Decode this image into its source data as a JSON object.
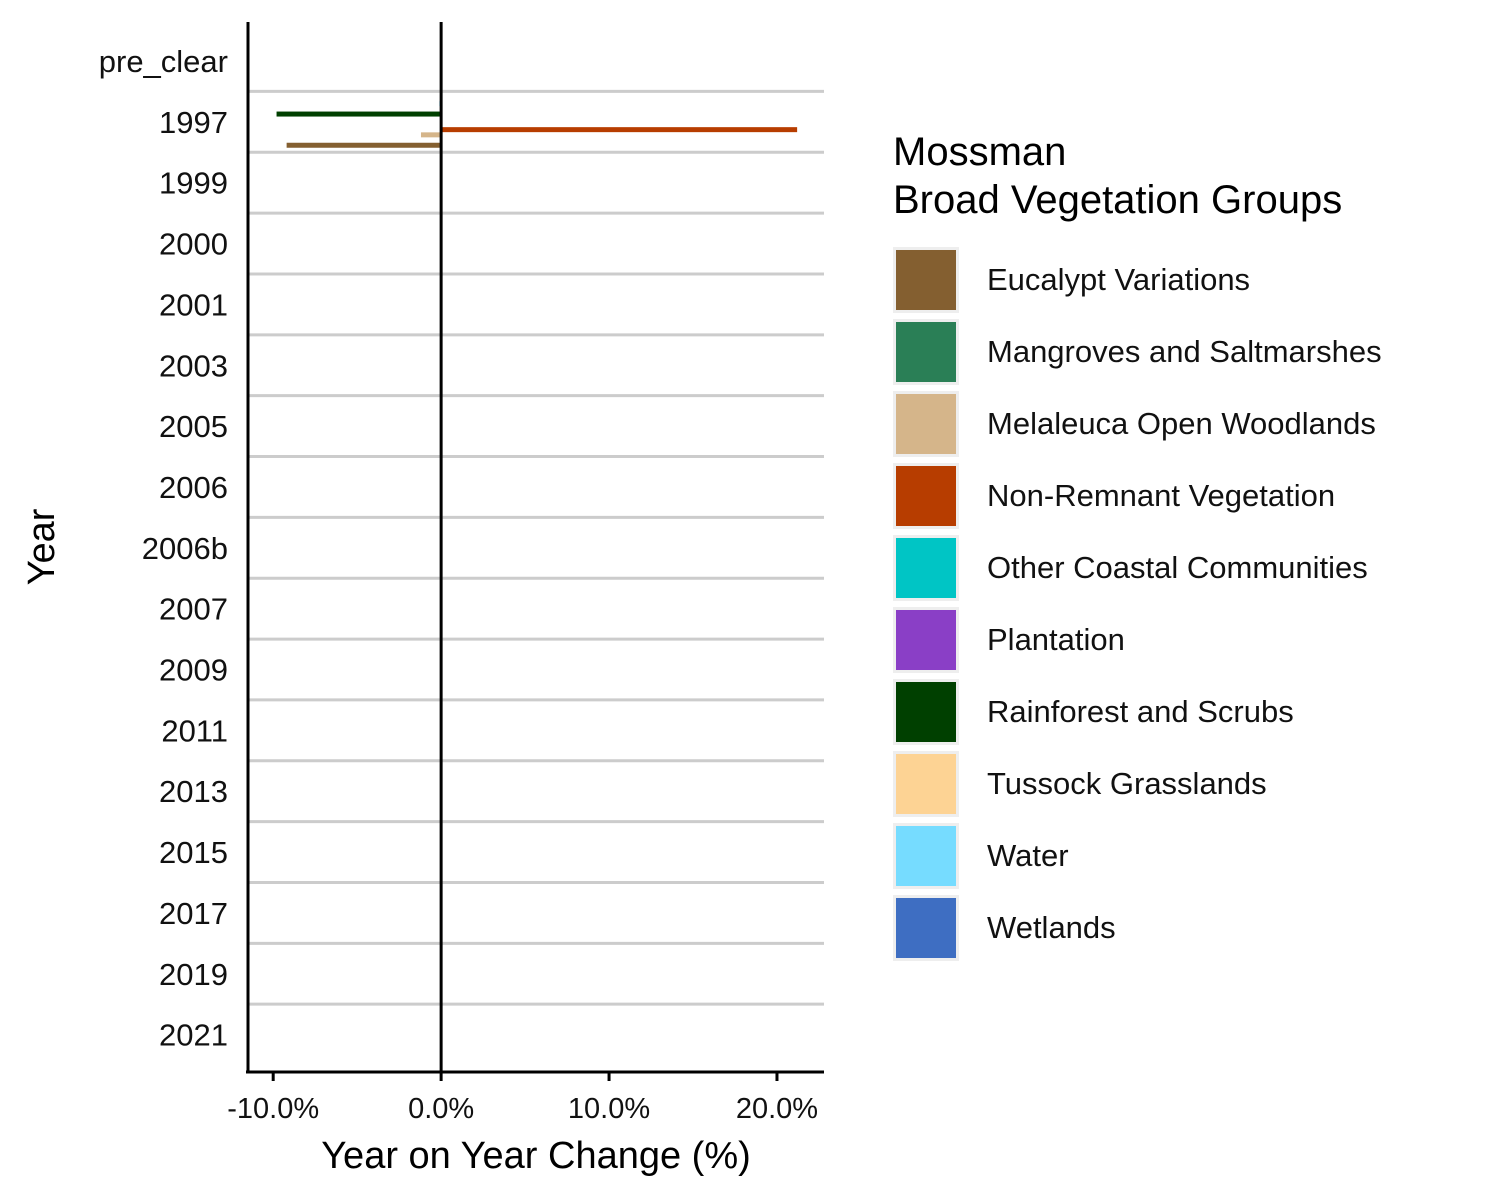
{
  "chart_data": {
    "type": "bar",
    "orientation": "horizontal",
    "title": "",
    "xlabel": "Year on Year Change (%)",
    "ylabel": "Year",
    "xlim": [
      -11.5,
      22.8
    ],
    "x_ticks": [
      -10,
      0,
      10,
      20
    ],
    "x_tick_labels": [
      "-10.0%",
      "0.0%",
      "10.0%",
      "20.0%"
    ],
    "categories": [
      "pre_clear",
      "1997",
      "1999",
      "2000",
      "2001",
      "2003",
      "2005",
      "2006",
      "2006b",
      "2007",
      "2009",
      "2011",
      "2013",
      "2015",
      "2017",
      "2019",
      "2021"
    ],
    "legend_title": [
      "Mossman",
      "Broad Vegetation Groups"
    ],
    "legend_position": "right",
    "series": [
      {
        "name": "Eucalypt Variations",
        "color": "#845F30",
        "values": [
          null,
          -9.2,
          null,
          null,
          null,
          null,
          null,
          null,
          null,
          null,
          null,
          null,
          null,
          null,
          null,
          null,
          null
        ]
      },
      {
        "name": "Mangroves and Saltmarshes",
        "color": "#2A7F56",
        "values": [
          null,
          0.0,
          null,
          null,
          null,
          null,
          null,
          null,
          null,
          null,
          null,
          null,
          null,
          null,
          null,
          null,
          null
        ]
      },
      {
        "name": "Melaleuca Open Woodlands",
        "color": "#D5B58A",
        "values": [
          null,
          -1.2,
          null,
          null,
          null,
          null,
          null,
          null,
          null,
          null,
          null,
          null,
          null,
          null,
          null,
          null,
          null
        ]
      },
      {
        "name": "Non-Remnant Vegetation",
        "color": "#B73D00",
        "values": [
          null,
          21.2,
          null,
          null,
          null,
          null,
          null,
          null,
          null,
          null,
          null,
          null,
          null,
          null,
          null,
          null,
          null
        ]
      },
      {
        "name": "Other Coastal Communities",
        "color": "#00C5C5",
        "values": [
          null,
          0.0,
          null,
          null,
          null,
          null,
          null,
          null,
          null,
          null,
          null,
          null,
          null,
          null,
          null,
          null,
          null
        ]
      },
      {
        "name": "Plantation",
        "color": "#8A3FC6",
        "values": [
          null,
          0.0,
          null,
          null,
          null,
          null,
          null,
          null,
          null,
          null,
          null,
          null,
          null,
          null,
          null,
          null,
          null
        ]
      },
      {
        "name": "Rainforest and Scrubs",
        "color": "#004000",
        "values": [
          null,
          -9.8,
          null,
          null,
          null,
          null,
          null,
          null,
          null,
          null,
          null,
          null,
          null,
          null,
          null,
          null,
          null
        ]
      },
      {
        "name": "Tussock Grasslands",
        "color": "#FDD394",
        "values": [
          null,
          0.0,
          null,
          null,
          null,
          null,
          null,
          null,
          null,
          null,
          null,
          null,
          null,
          null,
          null,
          null,
          null
        ]
      },
      {
        "name": "Water",
        "color": "#76DCFF",
        "values": [
          null,
          -0.1,
          null,
          null,
          null,
          null,
          null,
          null,
          null,
          null,
          null,
          null,
          null,
          null,
          null,
          null,
          null
        ]
      },
      {
        "name": "Wetlands",
        "color": "#3E6EC2",
        "values": [
          null,
          0.0,
          null,
          null,
          null,
          null,
          null,
          null,
          null,
          null,
          null,
          null,
          null,
          null,
          null,
          null,
          null
        ]
      }
    ],
    "grid": "horizontal separators",
    "reference_line": 0
  }
}
